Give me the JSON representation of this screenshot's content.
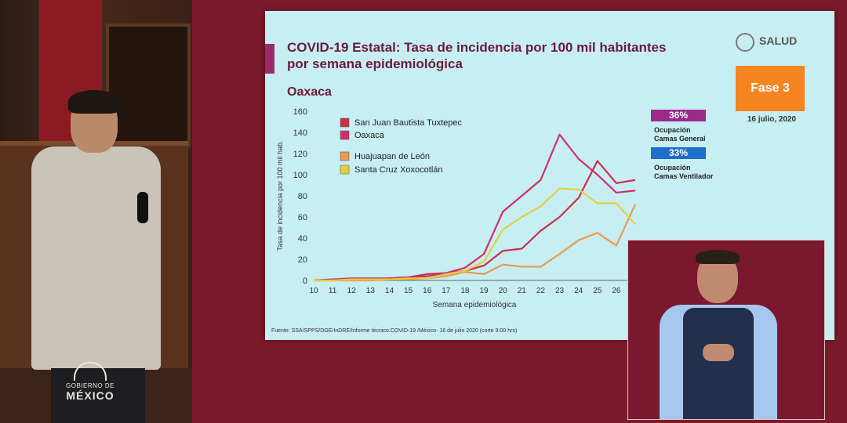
{
  "slide": {
    "title_line1": "COVID-19 Estatal: Tasa de incidencia por 100 mil habitantes",
    "title_line2": "por semana epidemiológica",
    "state": "Oaxaca",
    "logo_text": "SALUD",
    "phase": "Fase 3",
    "date": "16 julio, 2020",
    "occupancy_general_value": "36%",
    "occupancy_general_label1": "Ocupación",
    "occupancy_general_label2": "Camas General",
    "occupancy_vent_value": "33%",
    "occupancy_vent_label1": "Ocupación",
    "occupancy_vent_label2": "Camas Ventilador",
    "source": "Fuente: SSA/SPPS/DGE/InDRE/Informe técnico.COVID-19 /México- 16 de julio 2020 (corte 9:00 hrs)"
  },
  "branding": {
    "gob_line1": "GOBIERNO DE",
    "gob_line2": "MÉXICO"
  },
  "colors": {
    "tuxtepec": "#c8304a",
    "oaxaca": "#d0306a",
    "huajuapan": "#e89a50",
    "xoxocotlan": "#e0d040"
  },
  "chart_data": {
    "type": "line",
    "xlabel": "Semana epidemiológica",
    "ylabel": "Tasa de incidencia por 100 mil hab.",
    "ylim": [
      0,
      160
    ],
    "yticks": [
      0,
      20,
      40,
      60,
      80,
      100,
      120,
      140,
      160
    ],
    "x": [
      10,
      11,
      12,
      13,
      14,
      15,
      16,
      17,
      18,
      19,
      20,
      21,
      22,
      23,
      24,
      25,
      26,
      27
    ],
    "xtick_labels": [
      "10",
      "11",
      "12",
      "13",
      "14",
      "15",
      "16",
      "17",
      "18",
      "19",
      "20",
      "21",
      "22",
      "23",
      "24",
      "25",
      "26"
    ],
    "grid": false,
    "legend_position": "top-left",
    "series": [
      {
        "name": "San Juan Bautista Tuxtepec",
        "color": "#c8304a",
        "values": [
          0,
          1,
          1,
          1,
          2,
          3,
          6,
          7,
          9,
          14,
          28,
          30,
          47,
          60,
          78,
          113,
          92,
          95
        ]
      },
      {
        "name": "Oaxaca",
        "color": "#d0306a",
        "values": [
          0,
          1,
          2,
          2,
          2,
          3,
          4,
          7,
          12,
          25,
          65,
          80,
          95,
          138,
          115,
          100,
          83,
          85
        ]
      },
      {
        "name": "Huajuapan de León",
        "color": "#e89a50",
        "values": [
          0,
          0,
          0,
          0,
          1,
          1,
          2,
          4,
          8,
          6,
          15,
          13,
          13,
          25,
          38,
          45,
          33,
          72
        ]
      },
      {
        "name": "Santa Cruz Xoxocotlán",
        "color": "#e0d040",
        "values": [
          0,
          0,
          1,
          1,
          1,
          2,
          2,
          6,
          9,
          18,
          48,
          60,
          70,
          87,
          86,
          73,
          73,
          53
        ]
      }
    ]
  }
}
